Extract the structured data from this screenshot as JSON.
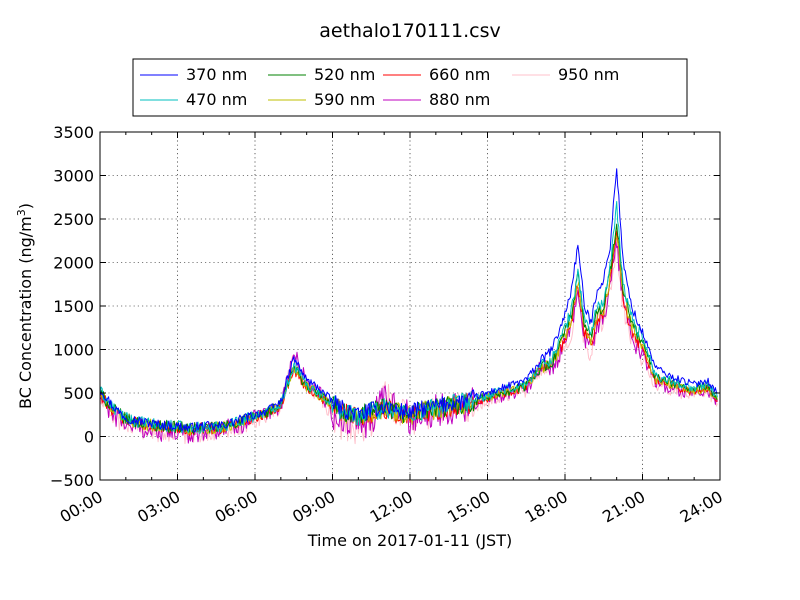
{
  "chart_data": {
    "type": "line",
    "title": "aethalo170111.csv",
    "xlabel": "Time on 2017-01-11 (JST)",
    "ylabel_main": "BC Concentration (ng/m",
    "ylabel_sup": "3",
    "ylabel_close": ")",
    "xlim": [
      "00:00",
      "24:00"
    ],
    "ylim": [
      -500,
      3500
    ],
    "grid": true,
    "legend_position": "top",
    "x_ticks": [
      "00:00",
      "03:00",
      "06:00",
      "09:00",
      "12:00",
      "15:00",
      "18:00",
      "21:00",
      "24:00"
    ],
    "y_ticks": [
      "-500",
      "0",
      "500",
      "1000",
      "1500",
      "2000",
      "2500",
      "3000",
      "3500"
    ],
    "x_hours": [
      0,
      0.5,
      1,
      1.5,
      2,
      2.5,
      3,
      3.5,
      4,
      4.5,
      5,
      5.5,
      6,
      6.5,
      7,
      7.5,
      8,
      8.5,
      9,
      9.5,
      10,
      10.5,
      11,
      11.5,
      12,
      12.5,
      13,
      13.5,
      14,
      14.5,
      15,
      15.5,
      16,
      16.5,
      17,
      17.5,
      18,
      18.25,
      18.5,
      18.75,
      19,
      19.25,
      19.5,
      19.75,
      20,
      20.25,
      20.5,
      20.75,
      21,
      21.5,
      22,
      22.5,
      23,
      23.5,
      23.9
    ],
    "series": [
      {
        "name": "370 nm",
        "color": "#0000ff",
        "values": [
          550,
          350,
          220,
          180,
          150,
          130,
          120,
          100,
          120,
          110,
          150,
          200,
          250,
          300,
          400,
          900,
          650,
          550,
          400,
          300,
          250,
          300,
          350,
          300,
          280,
          320,
          350,
          380,
          400,
          450,
          500,
          550,
          600,
          650,
          850,
          1000,
          1400,
          1700,
          2200,
          1500,
          1300,
          1700,
          1800,
          2200,
          3100,
          2000,
          1600,
          1350,
          1200,
          800,
          700,
          650,
          600,
          650,
          500
        ]
      },
      {
        "name": "470 nm",
        "color": "#00bfbf",
        "values": [
          520,
          330,
          210,
          170,
          140,
          125,
          115,
          95,
          110,
          105,
          140,
          190,
          240,
          290,
          380,
          820,
          600,
          500,
          380,
          280,
          240,
          290,
          330,
          290,
          270,
          300,
          330,
          360,
          380,
          420,
          470,
          520,
          560,
          600,
          800,
          900,
          1250,
          1450,
          1900,
          1350,
          1200,
          1500,
          1550,
          1950,
          2650,
          1750,
          1450,
          1250,
          1150,
          700,
          650,
          600,
          550,
          600,
          450
        ]
      },
      {
        "name": "520 nm",
        "color": "#008000",
        "values": [
          500,
          320,
          200,
          160,
          135,
          120,
          110,
          90,
          105,
          100,
          135,
          180,
          230,
          280,
          370,
          800,
          580,
          480,
          370,
          270,
          230,
          280,
          320,
          280,
          260,
          290,
          320,
          350,
          370,
          410,
          460,
          500,
          540,
          580,
          780,
          850,
          1200,
          1400,
          1850,
          1300,
          1150,
          1450,
          1500,
          1900,
          2450,
          1700,
          1400,
          1200,
          1100,
          680,
          630,
          580,
          530,
          580,
          430
        ]
      },
      {
        "name": "590 nm",
        "color": "#bfbf00",
        "values": [
          490,
          310,
          195,
          155,
          130,
          115,
          105,
          85,
          100,
          95,
          130,
          175,
          225,
          275,
          365,
          790,
          570,
          470,
          360,
          265,
          225,
          275,
          315,
          275,
          255,
          285,
          315,
          345,
          365,
          405,
          455,
          495,
          535,
          575,
          770,
          830,
          1150,
          1350,
          1800,
          1250,
          1100,
          1400,
          1450,
          1850,
          2350,
          1650,
          1350,
          1150,
          1050,
          660,
          610,
          560,
          520,
          560,
          420
        ]
      },
      {
        "name": "660 nm",
        "color": "#ff0000",
        "values": [
          480,
          300,
          190,
          150,
          125,
          110,
          100,
          80,
          95,
          90,
          125,
          170,
          220,
          270,
          360,
          780,
          560,
          460,
          350,
          260,
          220,
          270,
          310,
          270,
          250,
          280,
          310,
          340,
          360,
          400,
          450,
          490,
          530,
          570,
          760,
          820,
          1100,
          1300,
          1750,
          1200,
          1050,
          1350,
          1400,
          1800,
          2350,
          1600,
          1300,
          1100,
          1000,
          650,
          600,
          550,
          510,
          550,
          410
        ]
      },
      {
        "name": "880 nm",
        "color": "#bf00bf",
        "values": [
          450,
          250,
          150,
          100,
          60,
          50,
          40,
          30,
          60,
          80,
          100,
          150,
          200,
          260,
          350,
          950,
          650,
          500,
          250,
          150,
          120,
          200,
          400,
          300,
          220,
          250,
          300,
          320,
          340,
          390,
          440,
          480,
          520,
          560,
          750,
          800,
          1050,
          1250,
          1700,
          1150,
          1000,
          1300,
          1350,
          1750,
          2250,
          1550,
          1250,
          1050,
          950,
          620,
          580,
          520,
          500,
          530,
          400
        ]
      },
      {
        "name": "950 nm",
        "color": "#ffc0cb",
        "values": [
          420,
          230,
          130,
          90,
          50,
          40,
          30,
          20,
          50,
          70,
          90,
          140,
          190,
          250,
          340,
          900,
          600,
          450,
          220,
          130,
          100,
          180,
          500,
          280,
          200,
          230,
          280,
          300,
          320,
          370,
          420,
          460,
          500,
          540,
          720,
          780,
          1000,
          1200,
          1650,
          1100,
          950,
          1250,
          1300,
          1700,
          2200,
          1500,
          1200,
          1000,
          900,
          600,
          550,
          500,
          480,
          510,
          380
        ]
      }
    ]
  }
}
